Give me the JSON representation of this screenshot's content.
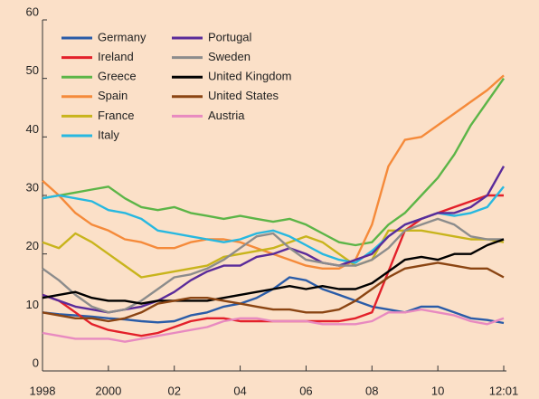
{
  "chart_data": {
    "type": "line",
    "x": [
      1998,
      1998.5,
      1999,
      1999.5,
      2000,
      2000.5,
      2001,
      2001.5,
      2002,
      2002.5,
      2003,
      2003.5,
      2004,
      2004.5,
      2005,
      2005.5,
      2006,
      2006.5,
      2007,
      2007.5,
      2008,
      2008.5,
      2009,
      2009.5,
      2010,
      2010.5,
      2011,
      2011.5,
      2012
    ],
    "xlim": [
      1998,
      2012
    ],
    "xticks": [
      1998,
      2000,
      {
        "value": 2002,
        "label": "02"
      },
      {
        "value": 2004,
        "label": "04"
      },
      {
        "value": 2006,
        "label": "06"
      },
      {
        "value": 2008,
        "label": "08"
      },
      {
        "value": 2010,
        "label": "10"
      },
      {
        "value": 2012,
        "label": "12:01"
      }
    ],
    "ylim": [
      0,
      60
    ],
    "yticks": [
      0,
      10,
      20,
      30,
      40,
      50,
      60
    ],
    "series": [
      {
        "name": "Germany",
        "color": "#2a5ca8",
        "values": [
          10,
          9.7,
          9.5,
          9.3,
          9,
          8.8,
          8.5,
          8.3,
          8.5,
          9.5,
          10,
          11,
          11.5,
          12.5,
          14,
          16,
          15.5,
          14,
          13,
          12,
          11,
          10.5,
          10,
          11,
          11,
          10,
          9,
          8.7,
          8.2
        ]
      },
      {
        "name": "Ireland",
        "color": "#e3202a",
        "values": [
          13,
          12,
          10,
          8,
          7,
          6.5,
          6,
          6.5,
          7.5,
          8.5,
          9,
          9,
          8.5,
          8.5,
          8.5,
          8.5,
          8.5,
          8.5,
          8.5,
          9,
          10,
          17,
          24,
          26,
          27,
          28,
          29,
          30,
          30
        ]
      },
      {
        "name": "Greece",
        "color": "#5cb547",
        "values": [
          29.5,
          30,
          30.5,
          31,
          31.5,
          29.5,
          28,
          27.5,
          28,
          27,
          26.5,
          26,
          26.5,
          26,
          25.5,
          26,
          25,
          23.5,
          22,
          21.5,
          22,
          25,
          27,
          30,
          33,
          37,
          42,
          46,
          50
        ]
      },
      {
        "name": "Spain",
        "color": "#f58a3a",
        "values": [
          32.5,
          30,
          27,
          25,
          24,
          22.5,
          22,
          21,
          21,
          22,
          22.5,
          22.5,
          22,
          21,
          20,
          19,
          18,
          17.5,
          17.5,
          19,
          25,
          35,
          39.5,
          40,
          42,
          44,
          46,
          48,
          50.5
        ]
      },
      {
        "name": "France",
        "color": "#c8b41c",
        "values": [
          22,
          21,
          23.5,
          22,
          20,
          18,
          16,
          16.5,
          17,
          17.5,
          18,
          19.5,
          20,
          20.5,
          21,
          22,
          23,
          22,
          20,
          18,
          19,
          24,
          24,
          24,
          23.5,
          23,
          22.5,
          22.5,
          22
        ]
      },
      {
        "name": "Italy",
        "color": "#27b8e0",
        "values": [
          29.5,
          30,
          29.5,
          29,
          27.5,
          27,
          26,
          24,
          23.5,
          23,
          22.5,
          22,
          22.5,
          23.5,
          24,
          23,
          21.5,
          20,
          19,
          18.5,
          20.5,
          23,
          25,
          26,
          27,
          26.5,
          27,
          28,
          31.5
        ]
      },
      {
        "name": "Portugal",
        "color": "#5a2b9a",
        "values": [
          13,
          12,
          11,
          10.5,
          10,
          10.5,
          11,
          12,
          13.5,
          15.5,
          17,
          18,
          18,
          19.5,
          20,
          21,
          20,
          18.5,
          18,
          19,
          20,
          23,
          25,
          26,
          27,
          27,
          28,
          30,
          35
        ]
      },
      {
        "name": "Sweden",
        "color": "#8c8c8c",
        "values": [
          17.5,
          15.5,
          13,
          11,
          10,
          10.5,
          12,
          14,
          16,
          16.5,
          17.5,
          19,
          21,
          23,
          23.5,
          21,
          19,
          18.5,
          18,
          18,
          19,
          21,
          24,
          25,
          26,
          25,
          23,
          22.5,
          22.5
        ]
      },
      {
        "name": "United Kingdom",
        "color": "#000000",
        "values": [
          12.5,
          13,
          13.5,
          12.5,
          12,
          12,
          11.5,
          12,
          12,
          12,
          12,
          12.5,
          13,
          13.5,
          14,
          14.5,
          14,
          14.5,
          14,
          14,
          15,
          17,
          19,
          19.5,
          19,
          20,
          20,
          21.5,
          22.5
        ]
      },
      {
        "name": "United States",
        "color": "#8b4513",
        "values": [
          10,
          9.5,
          9,
          9,
          8.5,
          9,
          10,
          11.5,
          12,
          12.5,
          12.5,
          12,
          11.5,
          11,
          10.5,
          10.5,
          10,
          10,
          10.5,
          12,
          14,
          16,
          17.5,
          18,
          18.5,
          18,
          17.5,
          17.5,
          16
        ]
      },
      {
        "name": "Austria",
        "color": "#e88ac0",
        "values": [
          6.5,
          6,
          5.5,
          5.5,
          5.5,
          5,
          5.5,
          6,
          6.5,
          7,
          7.5,
          8.5,
          9,
          9,
          8.5,
          8.5,
          8.5,
          8,
          8,
          8,
          8.5,
          10,
          10,
          10.5,
          10,
          9.5,
          8.5,
          8,
          9
        ]
      }
    ]
  }
}
